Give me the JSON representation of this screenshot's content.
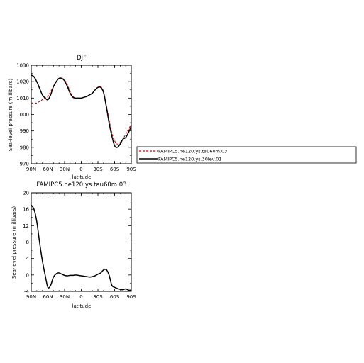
{
  "chart_data": [
    {
      "type": "line",
      "title": "DJF",
      "xlabel": "latitude",
      "ylabel": "Sea-level pressure (millibars)",
      "xlim": [
        90,
        -90
      ],
      "ylim": [
        970,
        1030
      ],
      "x_ticks": [
        90,
        60,
        30,
        0,
        -30,
        -60,
        -90
      ],
      "x_tick_labels": [
        "90N",
        "60N",
        "30N",
        "0",
        "30S",
        "60S",
        "90S"
      ],
      "y_ticks": [
        970,
        980,
        990,
        1000,
        1010,
        1020,
        1030
      ],
      "y_tick_labels": [
        "970",
        "980",
        "990",
        "1000",
        "1010",
        "1020",
        "1030"
      ],
      "legend": {
        "placement": "right",
        "entries": [
          "FAMIPC5.ne120.ys.tau60m.03",
          "FAMIPC5.ne120.ys.30lev.01"
        ]
      },
      "series": [
        {
          "name": "FAMIPC5.ne120.ys.tau60m.03",
          "color": "#cc0000",
          "dash": true,
          "x": [
            90,
            85,
            80,
            75,
            70,
            65,
            60,
            55,
            50,
            45,
            40,
            35,
            30,
            25,
            20,
            15,
            10,
            5,
            0,
            -5,
            -10,
            -15,
            -20,
            -25,
            -30,
            -35,
            -40,
            -45,
            -50,
            -55,
            -60,
            -65,
            -70,
            -75,
            -80,
            -85,
            -90
          ],
          "y": [
            1007,
            1007,
            1007,
            1008,
            1009,
            1010,
            1011,
            1014,
            1017,
            1020,
            1021.5,
            1022,
            1021,
            1018,
            1014,
            1011,
            1010,
            1010,
            1010,
            1010.5,
            1011,
            1012,
            1013,
            1015,
            1016.5,
            1017,
            1014,
            1006,
            997,
            989,
            984,
            982,
            983,
            985,
            988,
            991,
            994
          ]
        },
        {
          "name": "FAMIPC5.ne120.ys.30lev.01",
          "color": "#000000",
          "dash": false,
          "x": [
            90,
            85,
            80,
            75,
            70,
            65,
            60,
            55,
            50,
            45,
            40,
            35,
            30,
            25,
            20,
            15,
            10,
            5,
            0,
            -5,
            -10,
            -15,
            -20,
            -25,
            -30,
            -35,
            -40,
            -45,
            -50,
            -55,
            -60,
            -65,
            -70,
            -75,
            -80,
            -85,
            -90
          ],
          "y": [
            1024,
            1023,
            1020,
            1016,
            1012,
            1010,
            1009,
            1012,
            1017,
            1020,
            1022,
            1022,
            1020.5,
            1017,
            1013,
            1010.5,
            1010,
            1010,
            1010,
            1010.5,
            1011,
            1012,
            1013,
            1015,
            1016.5,
            1016.5,
            1013.5,
            1005,
            995,
            987,
            981,
            980,
            982,
            985,
            986,
            989,
            993
          ]
        }
      ]
    },
    {
      "type": "line",
      "title": "FAMIPC5.ne120.ys.tau60m.03",
      "xlabel": "latitude",
      "ylabel": "Sea-level pressure (millibars)",
      "xlim": [
        90,
        -90
      ],
      "ylim": [
        -4,
        20
      ],
      "x_ticks": [
        90,
        60,
        30,
        0,
        -30,
        -60,
        -90
      ],
      "x_tick_labels": [
        "90N",
        "60N",
        "30N",
        "0",
        "30S",
        "60S",
        "90S"
      ],
      "y_ticks": [
        -4,
        0,
        4,
        8,
        12,
        16,
        20
      ],
      "y_tick_labels": [
        "-4",
        "0",
        "4",
        "8",
        "12",
        "16",
        "20"
      ],
      "series": [
        {
          "color": "#000000",
          "dash": false,
          "x": [
            90,
            85,
            80,
            75,
            70,
            65,
            60,
            55,
            50,
            45,
            40,
            35,
            30,
            25,
            20,
            15,
            10,
            5,
            0,
            -5,
            -10,
            -15,
            -20,
            -25,
            -30,
            -35,
            -40,
            -45,
            -50,
            -55,
            -60,
            -65,
            -70,
            -75,
            -80,
            -85,
            -90
          ],
          "y": [
            17,
            16,
            13,
            8,
            3.5,
            0,
            -3,
            -2.5,
            -0.5,
            0.3,
            0.5,
            0.2,
            -0.1,
            -0.2,
            -0.1,
            -0.1,
            0,
            -0.1,
            -0.2,
            -0.3,
            -0.4,
            -0.5,
            -0.4,
            -0.2,
            0.2,
            0.5,
            1.2,
            1.3,
            0,
            -2.5,
            -3,
            -3.3,
            -3.5,
            -3.6,
            -3.4,
            -3.7,
            -3.7
          ]
        }
      ]
    }
  ]
}
